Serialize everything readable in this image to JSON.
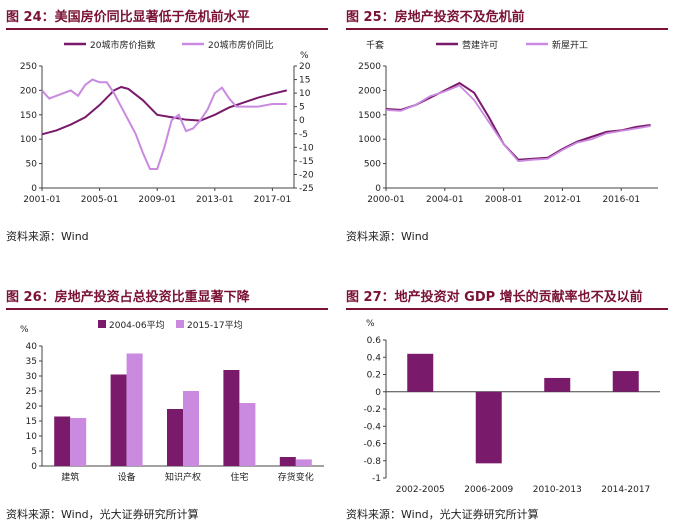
{
  "colors": {
    "dark": "#7a1a6a",
    "light": "#c98ae0",
    "title": "#7a1233"
  },
  "panels": [
    {
      "title": "图 24：美国房价同比显著低于危机前水平",
      "source": "资料来源：Wind"
    },
    {
      "title": "图 25：房地产投资不及危机前",
      "source": "资料来源：Wind"
    },
    {
      "title": "图 26：房地产投资占总投资比重显著下降",
      "source": "资料来源：Wind，光大证券研究所计算"
    },
    {
      "title": "图 27：地产投资对 GDP 增长的贡献率也不及以前",
      "source": "资料来源：Wind，光大证券研究所计算"
    }
  ],
  "chart_data": [
    {
      "type": "line",
      "legend": [
        "20城市房价指数",
        "20城市房价同比"
      ],
      "ylabel_right": "%",
      "x_ticks": [
        "2001-01",
        "2005-01",
        "2009-01",
        "2013-01",
        "2017-01"
      ],
      "xlim": [
        2001,
        2018.5
      ],
      "ylim": [
        0,
        250
      ],
      "yticks": [
        0,
        50,
        100,
        150,
        200,
        250
      ],
      "y2lim": [
        -25,
        20
      ],
      "y2ticks": [
        -25,
        -20,
        -15,
        -10,
        -5,
        0,
        5,
        10,
        15,
        20
      ],
      "series": [
        {
          "name": "20城市房价指数",
          "axis": "left",
          "x": [
            2001,
            2002,
            2003,
            2004,
            2005,
            2006,
            2006.5,
            2007,
            2008,
            2009,
            2010,
            2011,
            2012,
            2013,
            2014,
            2015,
            2016,
            2017,
            2018
          ],
          "y": [
            110,
            118,
            130,
            145,
            170,
            200,
            207,
            203,
            180,
            150,
            145,
            140,
            138,
            150,
            165,
            175,
            185,
            193,
            200
          ]
        },
        {
          "name": "20城市房价同比",
          "axis": "right",
          "x": [
            2001,
            2001.5,
            2002,
            2003,
            2003.5,
            2004,
            2004.5,
            2005,
            2005.5,
            2006,
            2006.5,
            2007,
            2007.5,
            2008,
            2008.5,
            2009,
            2009.5,
            2010,
            2010.5,
            2011,
            2011.5,
            2012,
            2012.5,
            2013,
            2013.5,
            2014,
            2014.5,
            2015,
            2016,
            2017,
            2018
          ],
          "y": [
            11,
            8,
            9,
            11,
            9,
            13,
            15,
            14,
            14,
            10,
            5,
            0,
            -5,
            -12,
            -18,
            -18,
            -10,
            0,
            2,
            -4,
            -3,
            0,
            4,
            10,
            12,
            8,
            5,
            5,
            5,
            6,
            6
          ]
        }
      ]
    },
    {
      "type": "line",
      "legend": [
        "营建许可",
        "新屋开工"
      ],
      "ylabel": "千套",
      "x_ticks": [
        "2000-01",
        "2004-01",
        "2008-01",
        "2012-01",
        "2016-01"
      ],
      "xlim": [
        2000,
        2018.5
      ],
      "ylim": [
        0,
        2500
      ],
      "yticks": [
        0,
        500,
        1000,
        1500,
        2000,
        2500
      ],
      "series": [
        {
          "name": "营建许可",
          "x": [
            2000,
            2001,
            2002,
            2003,
            2004,
            2005,
            2006,
            2007,
            2008,
            2009,
            2010,
            2011,
            2012,
            2013,
            2014,
            2015,
            2016,
            2017,
            2018
          ],
          "y": [
            1620,
            1600,
            1700,
            1850,
            2000,
            2150,
            1950,
            1450,
            900,
            580,
            600,
            620,
            800,
            950,
            1050,
            1150,
            1180,
            1250,
            1290
          ]
        },
        {
          "name": "新屋开工",
          "x": [
            2000,
            2001,
            2002,
            2003,
            2004,
            2005,
            2006,
            2007,
            2008,
            2009,
            2010,
            2011,
            2012,
            2013,
            2014,
            2015,
            2016,
            2017,
            2018
          ],
          "y": [
            1600,
            1580,
            1700,
            1880,
            1980,
            2100,
            1800,
            1350,
            900,
            550,
            580,
            600,
            780,
            930,
            1000,
            1120,
            1170,
            1220,
            1270
          ]
        }
      ]
    },
    {
      "type": "bar",
      "ylabel": "%",
      "legend": [
        "2004-06平均",
        "2015-17平均"
      ],
      "categories": [
        "建筑",
        "设备",
        "知识产权",
        "住宅",
        "存货变化"
      ],
      "ylim": [
        0,
        40
      ],
      "yticks": [
        0,
        5,
        10,
        15,
        20,
        25,
        30,
        35,
        40
      ],
      "series": [
        {
          "name": "2004-06平均",
          "values": [
            16.5,
            30.5,
            19,
            32,
            3
          ]
        },
        {
          "name": "2015-17平均",
          "values": [
            16,
            37.5,
            25,
            21,
            2.2
          ]
        }
      ]
    },
    {
      "type": "bar",
      "ylabel": "%",
      "categories": [
        "2002-2005",
        "2006-2009",
        "2010-2013",
        "2014-2017"
      ],
      "ylim": [
        -1,
        0.6
      ],
      "yticks": [
        -1,
        -0.8,
        -0.6,
        -0.4,
        -0.2,
        0,
        0.2,
        0.4,
        0.6
      ],
      "values": [
        0.44,
        -0.83,
        0.16,
        0.24
      ]
    }
  ]
}
